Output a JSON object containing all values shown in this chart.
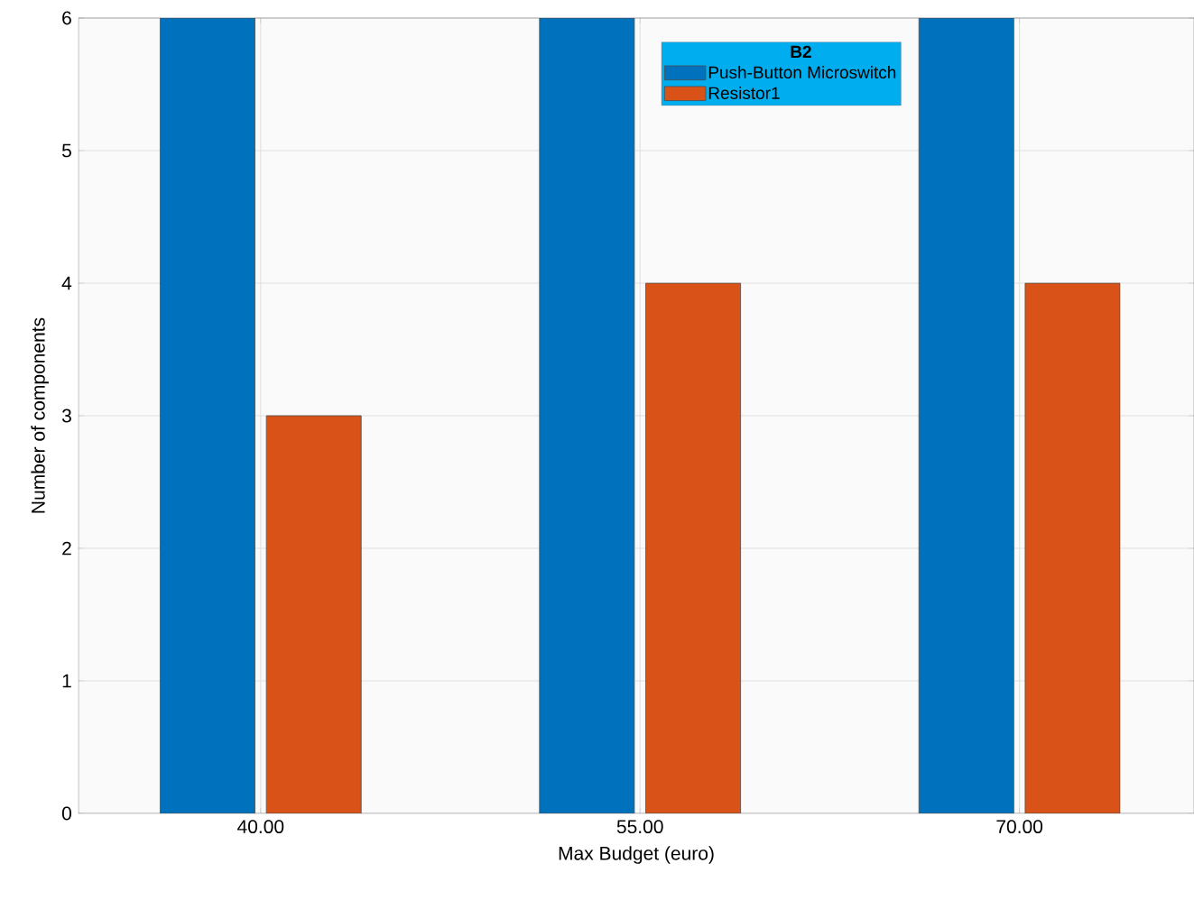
{
  "chart_data": {
    "type": "bar",
    "xlabel": "Max Budget (euro)",
    "ylabel": "Number of components",
    "legend_title": "B2",
    "categories": [
      "40.00",
      "55.00",
      "70.00"
    ],
    "series": [
      {
        "name": "Push-Button Microswitch",
        "color": "#0072bd",
        "values": [
          6,
          6,
          6
        ]
      },
      {
        "name": "Resistor1",
        "color": "#d95319",
        "values": [
          3,
          4,
          4
        ]
      }
    ],
    "ylim": [
      0,
      6
    ],
    "yticks": [
      0,
      1,
      2,
      3,
      4,
      5,
      6
    ],
    "grid": true,
    "legend": "top"
  }
}
